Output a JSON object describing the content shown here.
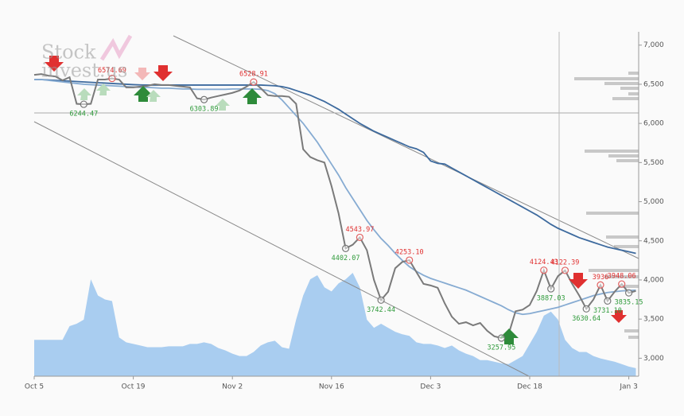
{
  "logo": {
    "line1": "Stock",
    "line2": "invest.us"
  },
  "chart_data": {
    "type": "line",
    "categories": [
      "Oct 5",
      null,
      null,
      null,
      null,
      null,
      null,
      null,
      null,
      null,
      null,
      null,
      null,
      null,
      "Oct 19",
      null,
      null,
      null,
      null,
      null,
      null,
      null,
      null,
      null,
      null,
      null,
      null,
      null,
      "Nov 2",
      null,
      null,
      null,
      null,
      null,
      null,
      null,
      null,
      null,
      null,
      null,
      null,
      null,
      "Nov 16",
      null,
      null,
      null,
      null,
      null,
      null,
      null,
      null,
      null,
      null,
      null,
      null,
      null,
      "Dec 3",
      null,
      null,
      null,
      null,
      null,
      null,
      null,
      null,
      null,
      null,
      null,
      null,
      null,
      "Dec 18",
      null,
      null,
      null,
      null,
      null,
      null,
      null,
      null,
      null,
      null,
      null,
      null,
      null,
      "Jan 3",
      null
    ],
    "ylim": [
      2770,
      7170
    ],
    "yticks": [
      {
        "value": 3000,
        "label": "3,000"
      },
      {
        "value": 3500,
        "label": "3,500"
      },
      {
        "value": 4000,
        "label": "4,000"
      },
      {
        "value": 4500,
        "label": "4,500"
      },
      {
        "value": 5000,
        "label": "5,000"
      },
      {
        "value": 5500,
        "label": "5,500"
      },
      {
        "value": 6000,
        "label": "6,000"
      },
      {
        "value": 6500,
        "label": "6,500"
      },
      {
        "value": 7000,
        "label": "7,000"
      }
    ],
    "series": [
      {
        "color": "#7a7a7a",
        "values": [
          6620,
          6630,
          6610,
          6600,
          6550,
          6590,
          6250,
          6244.47,
          6250,
          6560,
          6560,
          6574.69,
          6560,
          6460,
          6460,
          6470,
          6480,
          6500,
          6490,
          6490,
          6480,
          6470,
          6460,
          6320,
          6303.89,
          6330,
          6350,
          6370,
          6390,
          6420,
          6470,
          6528.91,
          6450,
          6360,
          6350,
          6350,
          6340,
          6250,
          5670,
          5570,
          5530,
          5500,
          5200,
          4850,
          4402.07,
          4450,
          4543.97,
          4380,
          4000,
          3742.44,
          3850,
          4150,
          4230,
          4253.1,
          4100,
          3950,
          3930,
          3900,
          3700,
          3530,
          3440,
          3460,
          3420,
          3450,
          3350,
          3280,
          3257.95,
          3300,
          3600,
          3620,
          3680,
          3860,
          4124.43,
          3887.03,
          4050,
          4122.39,
          3950,
          3800,
          3630.64,
          3750,
          3936,
          3731.1,
          3850,
          3948.06,
          3835.15,
          3860
        ],
        "value_labels": [
          null,
          null,
          null,
          null,
          null,
          null,
          null,
          "6244.47",
          null,
          null,
          null,
          "6574.69",
          null,
          null,
          null,
          null,
          null,
          null,
          null,
          null,
          null,
          null,
          null,
          null,
          "6303.89",
          null,
          null,
          null,
          null,
          null,
          null,
          "6528.91",
          null,
          null,
          null,
          null,
          null,
          null,
          null,
          null,
          null,
          null,
          null,
          null,
          "4402.07",
          null,
          "4543.97",
          null,
          null,
          "3742.44",
          null,
          null,
          null,
          "4253.10",
          null,
          null,
          null,
          null,
          null,
          null,
          null,
          null,
          null,
          null,
          null,
          null,
          "3257.95",
          null,
          null,
          null,
          null,
          null,
          "4124.43",
          "3887.03",
          null,
          "4122.39",
          null,
          null,
          "3630.64",
          null,
          "3936",
          "3731.10",
          null,
          "3948.06",
          "3835.15",
          null
        ]
      },
      {
        "color": "#3d6a9e",
        "values": [
          6560,
          6560,
          6555,
          6550,
          6545,
          6540,
          6535,
          6530,
          6525,
          6520,
          6515,
          6510,
          6505,
          6500,
          6495,
          6492,
          6490,
          6490,
          6490,
          6490,
          6490,
          6490,
          6490,
          6490,
          6490,
          6490,
          6490,
          6490,
          6490,
          6490,
          6490,
          6490,
          6490,
          6485,
          6480,
          6470,
          6450,
          6420,
          6390,
          6360,
          6320,
          6280,
          6230,
          6180,
          6120,
          6060,
          6000,
          5950,
          5900,
          5860,
          5820,
          5780,
          5740,
          5700,
          5675,
          5630,
          5520,
          5490,
          5480,
          5430,
          5380,
          5330,
          5280,
          5230,
          5180,
          5130,
          5080,
          5030,
          4980,
          4930,
          4880,
          4830,
          4770,
          4710,
          4660,
          4620,
          4580,
          4540,
          4510,
          4480,
          4450,
          4420,
          4400,
          4380,
          4360,
          4340
        ]
      },
      {
        "color": "#86abd2",
        "values": [
          6560,
          6560,
          6550,
          6540,
          6530,
          6520,
          6510,
          6500,
          6495,
          6490,
          6485,
          6480,
          6475,
          6470,
          6465,
          6460,
          6460,
          6455,
          6450,
          6450,
          6445,
          6440,
          6440,
          6435,
          6435,
          6435,
          6435,
          6435,
          6440,
          6440,
          6440,
          6440,
          6435,
          6420,
          6380,
          6300,
          6200,
          6100,
          6000,
          5880,
          5760,
          5620,
          5480,
          5340,
          5180,
          5040,
          4900,
          4760,
          4640,
          4530,
          4440,
          4340,
          4250,
          4170,
          4110,
          4060,
          4020,
          3990,
          3960,
          3930,
          3900,
          3870,
          3830,
          3790,
          3750,
          3710,
          3670,
          3620,
          3580,
          3560,
          3570,
          3590,
          3610,
          3630,
          3650,
          3680,
          3710,
          3740,
          3770,
          3800,
          3820,
          3840,
          3850,
          3860,
          3865,
          3870
        ]
      }
    ],
    "volume": {
      "color": "#a9cdf0",
      "values": [
        45,
        45,
        45,
        45,
        45,
        62,
        65,
        70,
        120,
        100,
        95,
        93,
        48,
        42,
        40,
        38,
        36,
        36,
        36,
        37,
        37,
        37,
        40,
        40,
        42,
        40,
        35,
        32,
        28,
        25,
        25,
        30,
        38,
        42,
        44,
        36,
        34,
        70,
        100,
        120,
        125,
        110,
        105,
        115,
        120,
        128,
        110,
        70,
        60,
        65,
        60,
        55,
        52,
        50,
        42,
        40,
        40,
        38,
        35,
        38,
        32,
        28,
        25,
        20,
        20,
        18,
        16,
        15,
        20,
        25,
        40,
        55,
        75,
        80,
        70,
        45,
        35,
        30,
        30,
        25,
        22,
        20,
        18,
        15,
        12,
        10
      ]
    }
  }
}
